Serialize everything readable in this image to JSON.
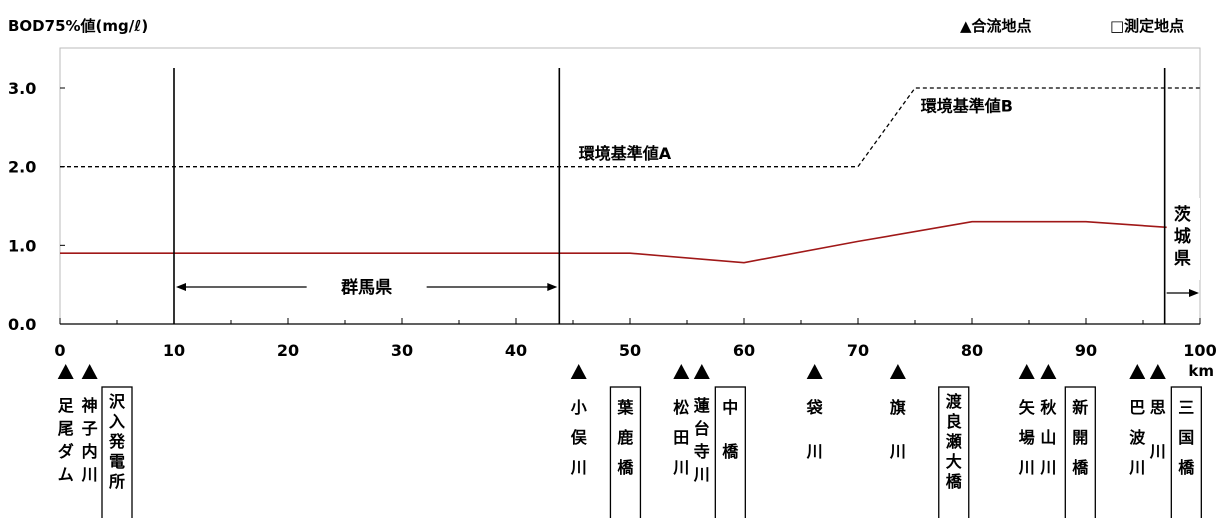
{
  "chart_data": {
    "type": "line",
    "ylabel": "BOD75%値(mg/ℓ)",
    "xunit": "km",
    "xlim": [
      0,
      100
    ],
    "ylim": [
      0,
      3.0
    ],
    "x_ticks": [
      "0",
      "10",
      "20",
      "30",
      "40",
      "50",
      "60",
      "70",
      "80",
      "90",
      "100"
    ],
    "y_ticks": [
      "0.0",
      "1.0",
      "2.0",
      "3.0"
    ],
    "series": [
      {
        "name": "BOD75%値",
        "color": "#a01818",
        "line": "solid",
        "x": [
          0,
          10,
          20,
          30,
          40,
          50,
          60,
          70,
          80,
          90,
          100
        ],
        "y": [
          0.9,
          0.9,
          0.9,
          0.9,
          0.9,
          0.9,
          0.78,
          1.05,
          1.3,
          1.3,
          1.2
        ]
      },
      {
        "name": "環境基準値A",
        "color": "#000000",
        "line": "dashed",
        "x": [
          0,
          70
        ],
        "y": [
          2.0,
          2.0
        ]
      },
      {
        "name": "環境基準値B",
        "color": "#000000",
        "line": "dashed",
        "x": [
          70,
          75,
          100
        ],
        "y": [
          2.0,
          3.0,
          3.0
        ]
      }
    ],
    "standard_labels": [
      {
        "text": "環境基準値A",
        "x": 45.5,
        "y": 2.1
      },
      {
        "text": "環境基準値B",
        "x": 75.5,
        "y": 2.7
      }
    ],
    "boundaries": [
      {
        "x": 10,
        "label": ""
      },
      {
        "x": 43.8,
        "label": ""
      },
      {
        "x": 96.9,
        "label": ""
      }
    ],
    "regions": [
      {
        "name": "群馬県",
        "from": 10,
        "to": 43.8,
        "orientation": "horizontal"
      },
      {
        "name": "茨城県",
        "from": 96.9,
        "to": 100,
        "orientation": "vertical"
      }
    ],
    "legend": {
      "confluence": "▲合流地点",
      "measurement": "□測定地点",
      "placement": "top-right"
    },
    "points": [
      {
        "x": 0.5,
        "label": "足尾ダム",
        "type": "confluence"
      },
      {
        "x": 2.6,
        "label": "神子内川",
        "type": "confluence"
      },
      {
        "x": 5.0,
        "label": "沢入発電所",
        "type": "measurement"
      },
      {
        "x": 45.5,
        "label": "小俣川",
        "type": "confluence"
      },
      {
        "x": 49.6,
        "label": "葉鹿橋",
        "type": "measurement"
      },
      {
        "x": 54.5,
        "label": "松田川",
        "type": "confluence"
      },
      {
        "x": 56.3,
        "label": "蓮台寺川",
        "type": "confluence"
      },
      {
        "x": 58.8,
        "label": "中橋",
        "type": "measurement"
      },
      {
        "x": 66.2,
        "label": "袋川",
        "type": "confluence"
      },
      {
        "x": 73.5,
        "label": "旗川",
        "type": "confluence"
      },
      {
        "x": 78.4,
        "label": "渡良瀬大橋",
        "type": "measurement"
      },
      {
        "x": 84.8,
        "label": "矢場川",
        "type": "confluence"
      },
      {
        "x": 86.7,
        "label": "秋山川",
        "type": "confluence"
      },
      {
        "x": 89.5,
        "label": "新開橋",
        "type": "measurement"
      },
      {
        "x": 94.5,
        "label": "巴波川",
        "type": "confluence"
      },
      {
        "x": 96.3,
        "label": "思川",
        "type": "confluence"
      },
      {
        "x": 98.8,
        "label": "三国橋",
        "type": "measurement"
      }
    ]
  }
}
